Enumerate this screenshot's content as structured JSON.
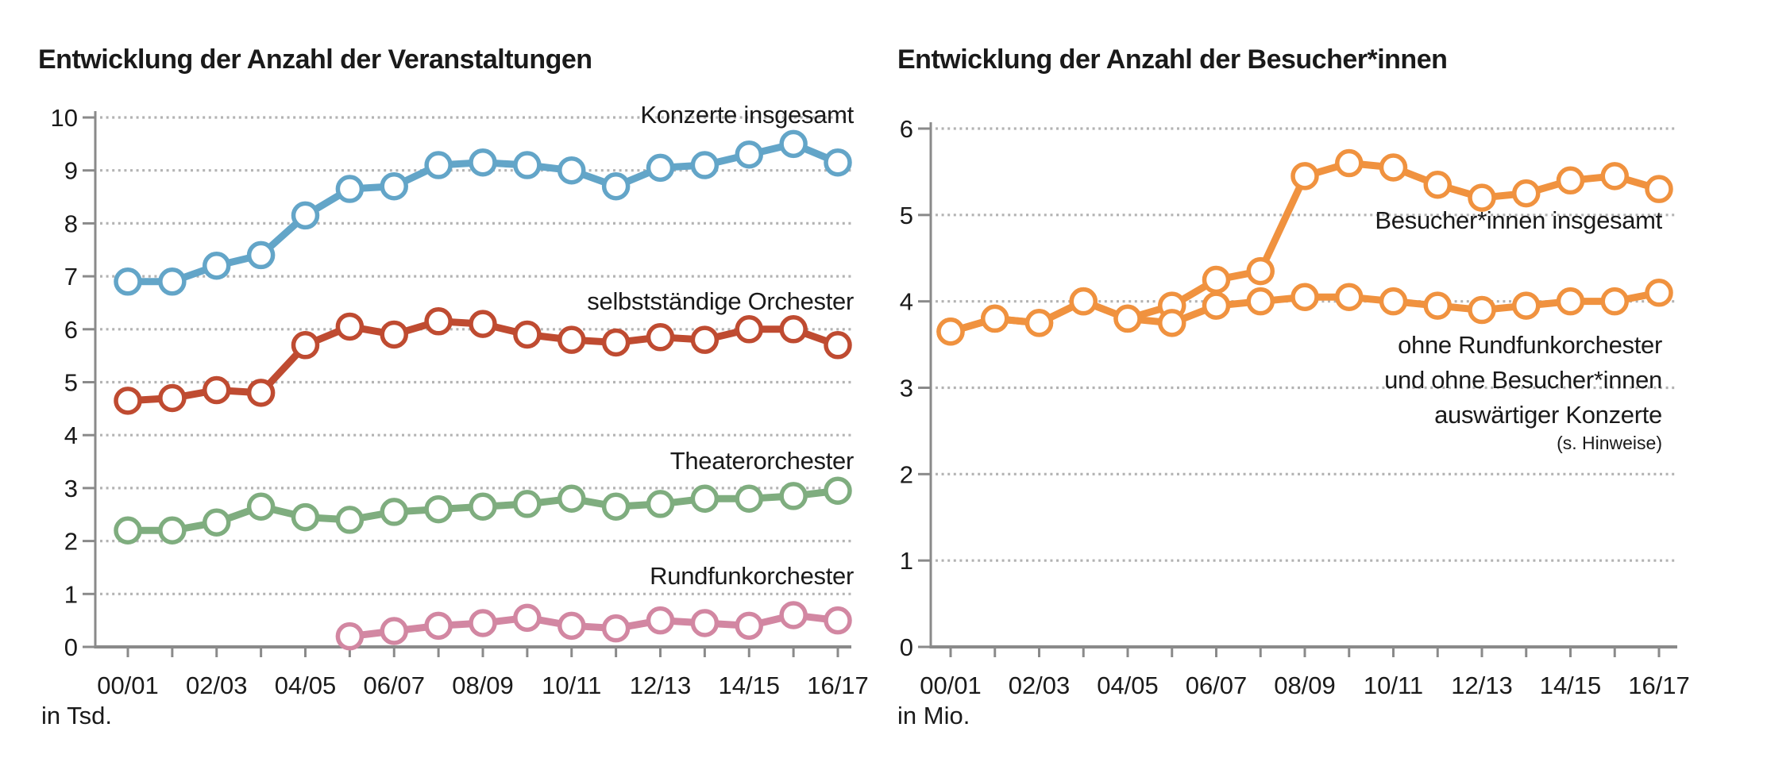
{
  "colors": {
    "background": "#ffffff",
    "grid": "#b3b3b3",
    "axis": "#8a8a8a",
    "text": "#1a1a1a",
    "marker_fill": "#ffffff"
  },
  "chart_data": [
    {
      "type": "line",
      "title": "Entwicklung der Anzahl der Veranstaltungen",
      "unit_label": "in Tsd.",
      "categories": [
        "00/01",
        "01/02",
        "02/03",
        "03/04",
        "04/05",
        "05/06",
        "06/07",
        "07/08",
        "08/09",
        "09/10",
        "10/11",
        "11/12",
        "12/13",
        "13/14",
        "14/15",
        "15/16",
        "16/17"
      ],
      "x_tick_labels": [
        "00/01",
        "02/03",
        "04/05",
        "06/07",
        "08/09",
        "10/11",
        "12/13",
        "14/15",
        "16/17"
      ],
      "ylim": [
        0,
        10
      ],
      "y_ticks": [
        0,
        1,
        2,
        3,
        4,
        5,
        6,
        7,
        8,
        9,
        10
      ],
      "grid": "dotted-horizontal",
      "legend_position": "inline-right",
      "series": [
        {
          "name": "Konzerte insgesamt",
          "color": "#63a5c8",
          "values": [
            6.9,
            6.9,
            7.2,
            7.4,
            8.15,
            8.65,
            8.7,
            9.1,
            9.15,
            9.1,
            9.0,
            8.7,
            9.05,
            9.1,
            9.3,
            9.5,
            9.15
          ]
        },
        {
          "name": "selbstständige Orchester",
          "color": "#bf4b31",
          "values": [
            4.65,
            4.7,
            4.85,
            4.8,
            5.7,
            6.05,
            5.9,
            6.15,
            6.1,
            5.9,
            5.8,
            5.75,
            5.85,
            5.8,
            6.0,
            6.0,
            5.7
          ]
        },
        {
          "name": "Theaterorchester",
          "color": "#7fad7f",
          "values": [
            2.2,
            2.2,
            2.35,
            2.65,
            2.45,
            2.4,
            2.55,
            2.6,
            2.65,
            2.7,
            2.8,
            2.65,
            2.7,
            2.8,
            2.8,
            2.85,
            2.95
          ]
        },
        {
          "name": "Rundfunkorchester",
          "color": "#d287a2",
          "values": [
            null,
            null,
            null,
            null,
            null,
            0.2,
            0.3,
            0.4,
            0.45,
            0.55,
            0.4,
            0.35,
            0.5,
            0.45,
            0.4,
            0.6,
            0.5
          ]
        }
      ]
    },
    {
      "type": "line",
      "title": "Entwicklung der Anzahl der Besucher*innen",
      "unit_label": "in Mio.",
      "categories": [
        "00/01",
        "01/02",
        "02/03",
        "03/04",
        "04/05",
        "05/06",
        "06/07",
        "07/08",
        "08/09",
        "09/10",
        "10/11",
        "11/12",
        "12/13",
        "13/14",
        "14/15",
        "15/16",
        "16/17"
      ],
      "x_tick_labels": [
        "00/01",
        "02/03",
        "04/05",
        "06/07",
        "08/09",
        "10/11",
        "12/13",
        "14/15",
        "16/17"
      ],
      "ylim": [
        0,
        6
      ],
      "y_ticks": [
        0,
        1,
        2,
        3,
        4,
        5,
        6
      ],
      "grid": "dotted-horizontal",
      "legend_position": "inline-right",
      "series": [
        {
          "name": "Besucher*innen insgesamt",
          "color": "#f0923f",
          "label_lines": [
            "Besucher*innen insgesamt"
          ],
          "values": [
            3.65,
            3.8,
            3.75,
            4.0,
            3.8,
            3.95,
            4.25,
            4.35,
            5.45,
            5.6,
            5.55,
            5.35,
            5.2,
            5.25,
            5.4,
            5.45,
            5.3
          ]
        },
        {
          "name": "ohne Rundfunkorchester und ohne Besucher*innen auswärtiger Konzerte",
          "color": "#f0923f",
          "label_lines": [
            "ohne Rundfunkorchester",
            "und ohne Besucher*innen",
            "auswärtiger Konzerte"
          ],
          "note": "(s. Hinweise)",
          "values": [
            3.65,
            3.8,
            3.75,
            4.0,
            3.8,
            3.75,
            3.95,
            4.0,
            4.05,
            4.05,
            4.0,
            3.95,
            3.9,
            3.95,
            4.0,
            4.0,
            4.1
          ]
        }
      ]
    }
  ]
}
